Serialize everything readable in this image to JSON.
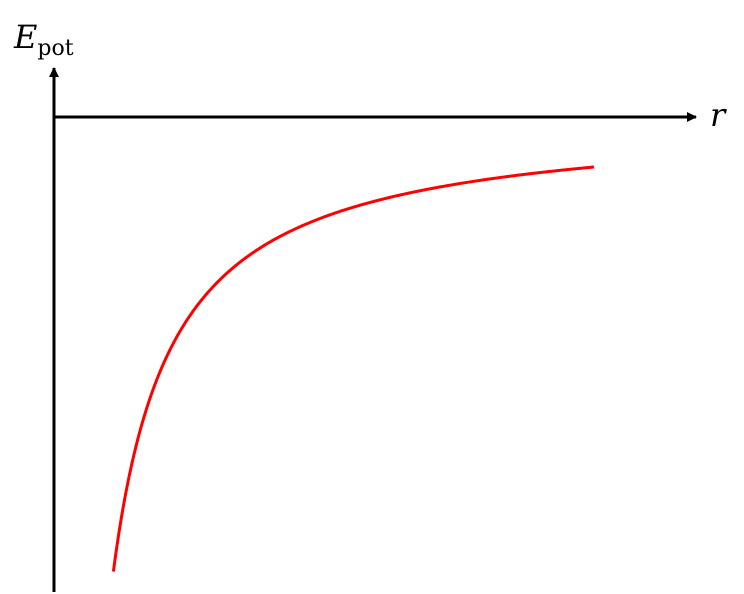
{
  "chart_data": {
    "type": "line",
    "x_axis": {
      "label": "r"
    },
    "y_axis": {
      "label": "E",
      "label_subscript": "pot"
    },
    "series": [
      {
        "color": "#ff0000",
        "function": "-1/r",
        "x": [
          0.55,
          0.6,
          0.7,
          0.8,
          0.9,
          1.0,
          1.2,
          1.4,
          1.6,
          1.8,
          2.0,
          2.5,
          3.0,
          3.5,
          4.0,
          4.5,
          5.0
        ],
        "values": [
          -1.818,
          -1.667,
          -1.429,
          -1.25,
          -1.111,
          -1.0,
          -0.833,
          -0.714,
          -0.625,
          -0.556,
          -0.5,
          -0.4,
          -0.333,
          -0.286,
          -0.25,
          -0.222,
          -0.2
        ]
      }
    ],
    "xlim": [
      0,
      5.4
    ],
    "ylim": [
      -2.0,
      0.5
    ],
    "grid": false,
    "legend": "none",
    "axis_color": "#000000"
  }
}
